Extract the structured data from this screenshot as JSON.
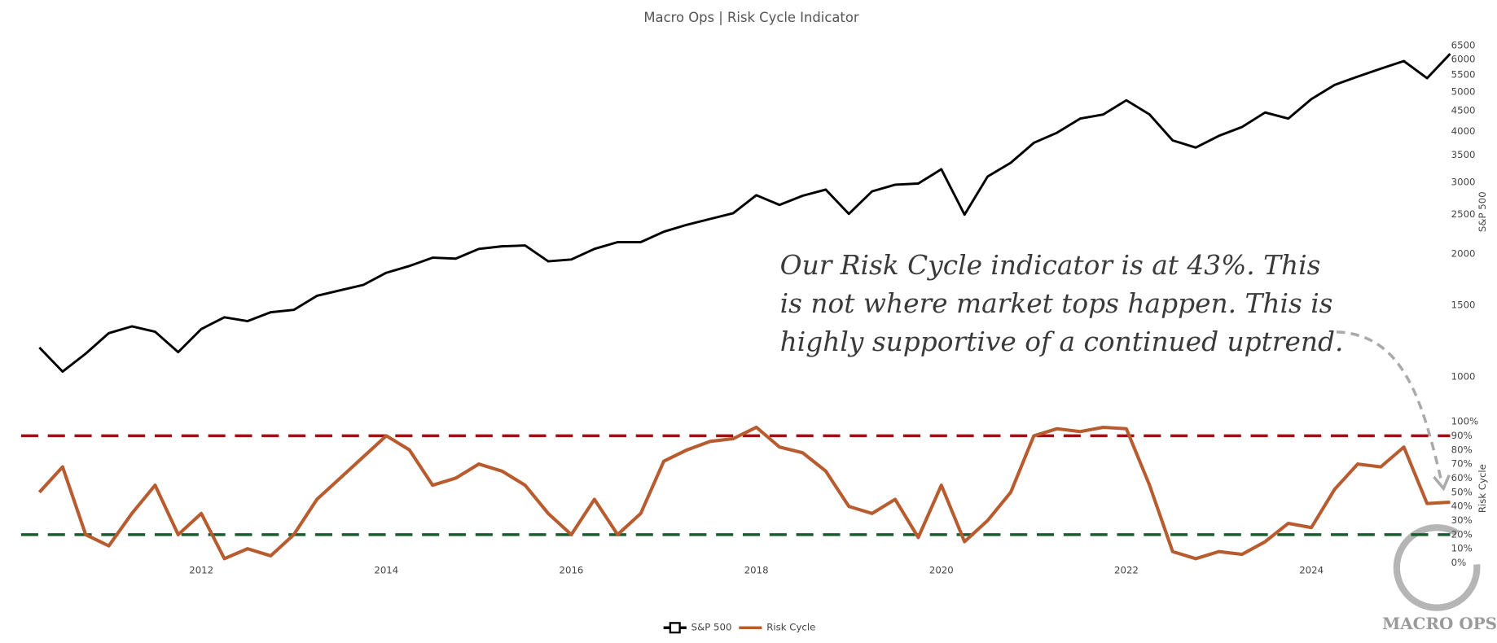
{
  "chart_data": {
    "type": "line",
    "title": "Macro Ops | Risk Cycle Indicator",
    "ylabel": "S&P 500",
    "y2label": "Risk Cycle",
    "annotation": [
      "Our Risk Cycle indicator is at 43%. This",
      "is not where market tops happen. This is",
      "highly supportive of a continued uptrend."
    ],
    "logo": "MACRO OPS",
    "x": [
      2010.25,
      2010.5,
      2010.75,
      2011,
      2011.25,
      2011.5,
      2011.75,
      2012,
      2012.25,
      2012.5,
      2012.75,
      2013,
      2013.25,
      2013.5,
      2013.75,
      2014,
      2014.25,
      2014.5,
      2014.75,
      2015,
      2015.25,
      2015.5,
      2015.75,
      2016,
      2016.25,
      2016.5,
      2016.75,
      2017,
      2017.25,
      2017.5,
      2017.75,
      2018,
      2018.25,
      2018.5,
      2018.75,
      2019,
      2019.25,
      2019.5,
      2019.75,
      2020,
      2020.25,
      2020.5,
      2020.75,
      2021,
      2021.25,
      2021.5,
      2021.75,
      2022,
      2022.25,
      2022.5,
      2022.75,
      2023,
      2023.25,
      2023.5,
      2023.75,
      2024,
      2024.25,
      2024.5,
      2024.75,
      2025,
      2025.25,
      2025.5
    ],
    "series": [
      {
        "name": "S&P 500",
        "color": "#000000",
        "axis": "y",
        "values": [
          1180,
          1030,
          1140,
          1280,
          1330,
          1290,
          1150,
          1310,
          1400,
          1370,
          1440,
          1460,
          1580,
          1630,
          1680,
          1800,
          1870,
          1960,
          1950,
          2060,
          2090,
          2100,
          1920,
          1940,
          2060,
          2140,
          2140,
          2270,
          2360,
          2440,
          2520,
          2790,
          2640,
          2780,
          2880,
          2510,
          2850,
          2960,
          2980,
          3230,
          2500,
          3100,
          3350,
          3750,
          3970,
          4300,
          4400,
          4770,
          4400,
          3800,
          3650,
          3900,
          4100,
          4450,
          4300,
          4800,
          5200,
          5450,
          5700,
          5950,
          5400,
          6200
        ]
      },
      {
        "name": "Risk Cycle",
        "color": "#b85c30",
        "axis": "y2",
        "values": [
          50,
          68,
          20,
          12,
          35,
          55,
          20,
          35,
          3,
          10,
          5,
          20,
          45,
          60,
          75,
          90,
          80,
          55,
          60,
          70,
          65,
          55,
          35,
          20,
          45,
          20,
          35,
          72,
          80,
          86,
          88,
          96,
          82,
          78,
          65,
          40,
          35,
          45,
          18,
          55,
          15,
          30,
          50,
          90,
          95,
          93,
          96,
          95,
          55,
          8,
          3,
          8,
          6,
          15,
          28,
          25,
          52,
          70,
          68,
          82,
          42,
          43
        ]
      }
    ],
    "xlim": [
      2010,
      2025.5
    ],
    "xticks": [
      2012,
      2014,
      2016,
      2018,
      2020,
      2022,
      2024
    ],
    "log_y": true,
    "ylim": [
      1000,
      6700
    ],
    "yticks": [
      1000,
      1500,
      2000,
      2500,
      3000,
      3500,
      4000,
      4500,
      5000,
      5500,
      6000,
      6500
    ],
    "y2lim": [
      0,
      100
    ],
    "y2ticks": [
      {
        "value": 0,
        "label": "0%"
      },
      {
        "value": 10,
        "label": "10%"
      },
      {
        "value": 20,
        "label": "20%"
      },
      {
        "value": 30,
        "label": "30%"
      },
      {
        "value": 40,
        "label": "40%"
      },
      {
        "value": 50,
        "label": "50%"
      },
      {
        "value": 60,
        "label": "60%"
      },
      {
        "value": 70,
        "label": "70%"
      },
      {
        "value": 80,
        "label": "80%"
      },
      {
        "value": 90,
        "label": "90%"
      },
      {
        "value": 100,
        "label": "100%"
      }
    ],
    "reference_lines": [
      {
        "value": 90,
        "color": "#a01010"
      },
      {
        "value": 20,
        "color": "#1a5c30"
      }
    ],
    "legend": "bottom"
  }
}
